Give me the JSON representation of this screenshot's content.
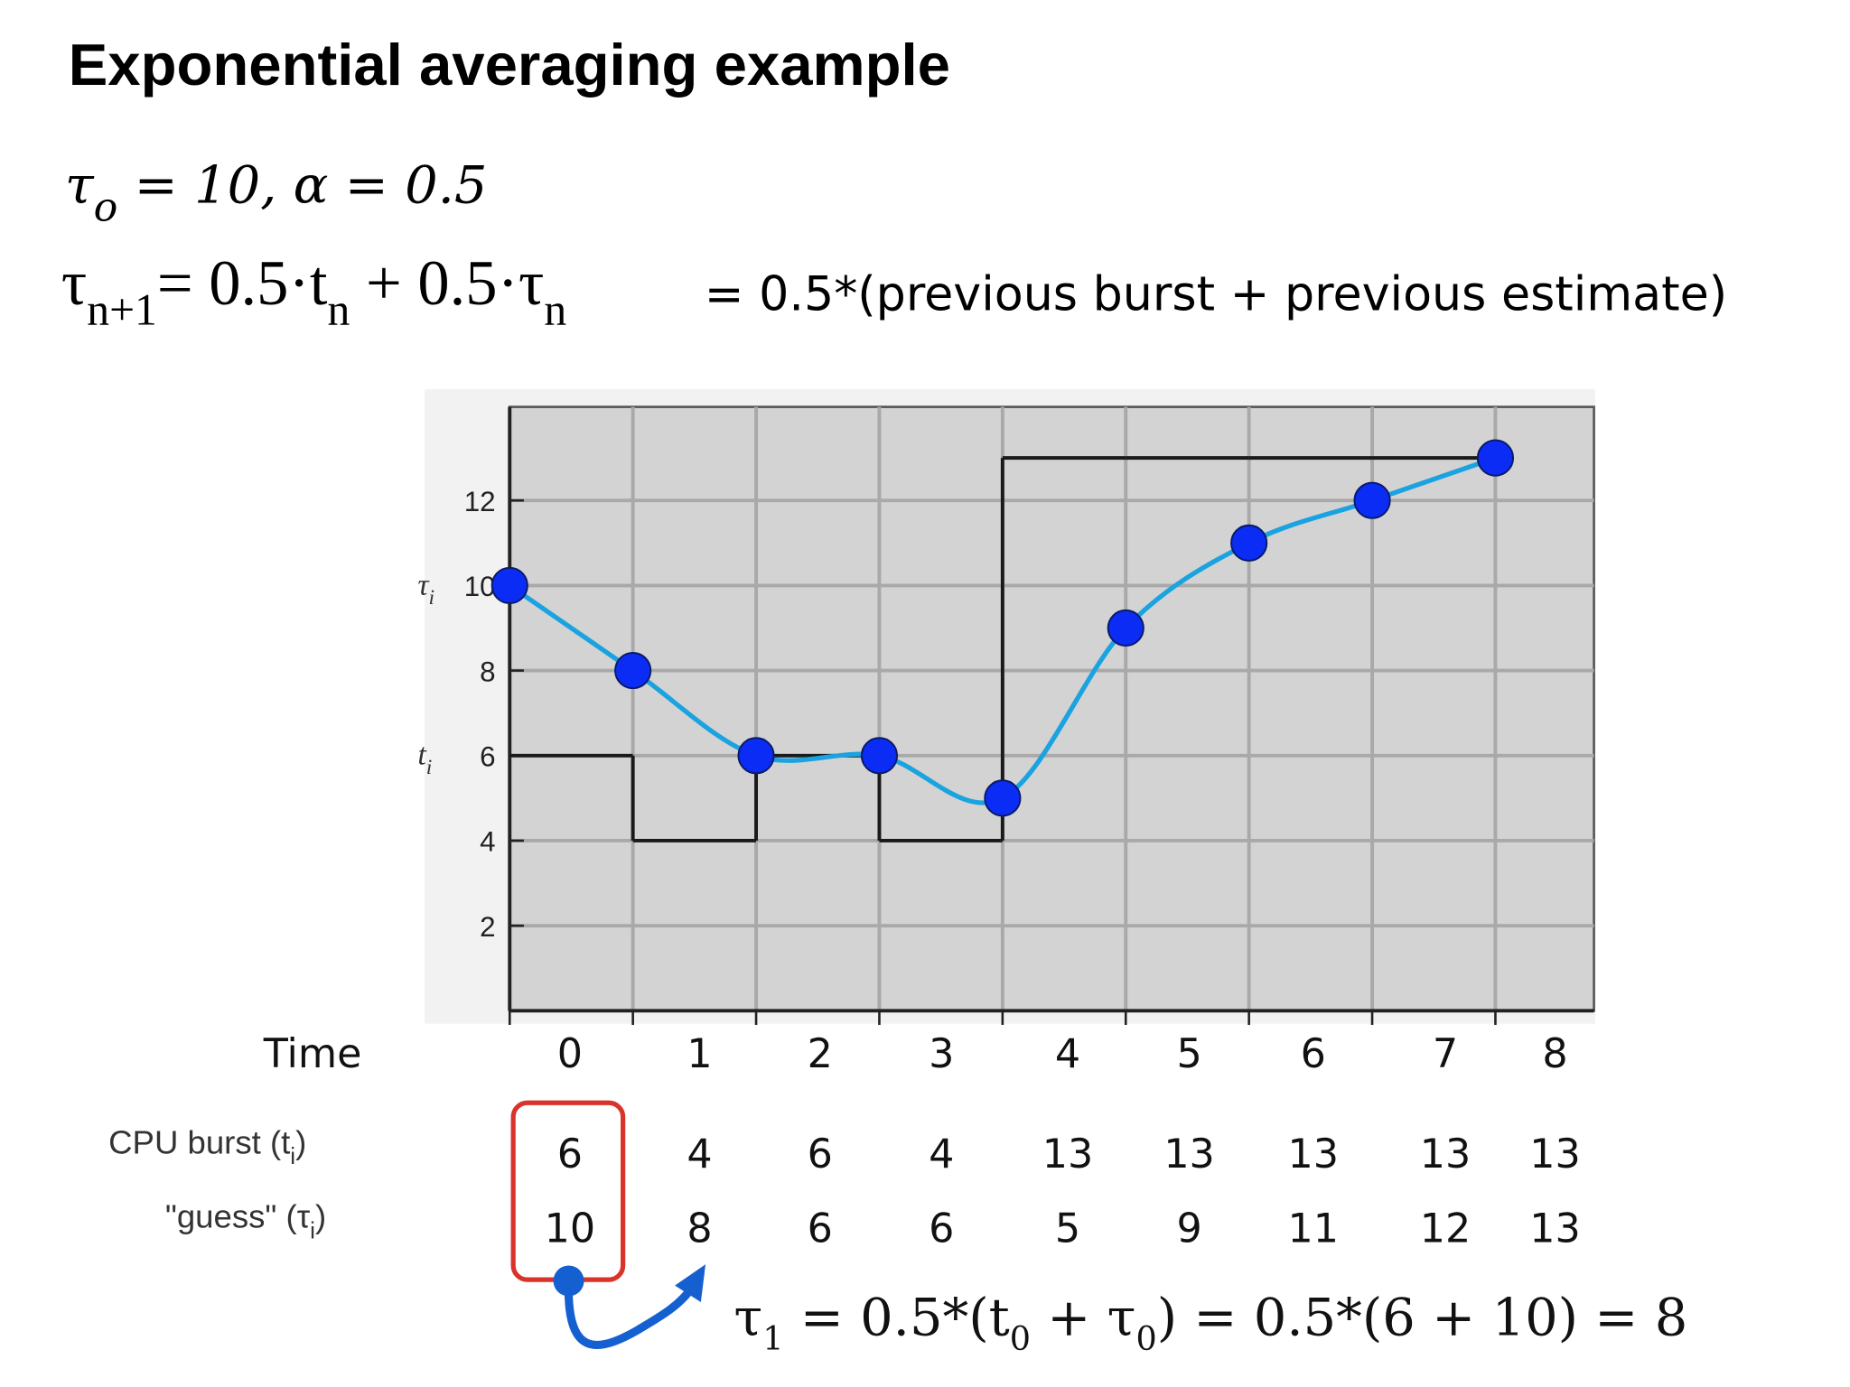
{
  "title": "Exponential averaging example",
  "formula_initial": [
    "τ",
    "o",
    " = 10, α = 0.5"
  ],
  "formula_update": [
    "τ",
    "n+1",
    "= 0.5·t",
    "n",
    " + 0.5·τ",
    "n"
  ],
  "formula_note": "= 0.5*(previous burst + previous estimate)",
  "chart_data": {
    "type": "line",
    "x": [
      0,
      1,
      2,
      3,
      4,
      5,
      6,
      7,
      8
    ],
    "xlim": [
      0,
      8.8
    ],
    "ylim": [
      0,
      14.2
    ],
    "yticks": [
      2,
      4,
      6,
      8,
      10,
      12
    ],
    "grid": true,
    "y_labels": [
      [
        "τ",
        "i"
      ],
      [
        "t",
        "i"
      ]
    ],
    "series": [
      {
        "color": "#1a1a1a",
        "step": true,
        "values": [
          6,
          4,
          6,
          4,
          13,
          13,
          13,
          13,
          13
        ]
      },
      {
        "color": "#1aa3e0",
        "marker_color": "#0a2cf5",
        "values": [
          10,
          8,
          6,
          6,
          5,
          9,
          11,
          12,
          13
        ]
      }
    ]
  },
  "table": {
    "row_labels": [
      [
        "Time"
      ],
      [
        "CPU burst (t",
        "i",
        ")"
      ],
      [
        "\"guess\" (τ",
        "i",
        ")"
      ]
    ]
  },
  "annotation": [
    "τ",
    "1",
    " = 0.5*(t",
    "0",
    " + τ",
    "0",
    ") = 0.5*(6 + 10) = 8"
  ]
}
